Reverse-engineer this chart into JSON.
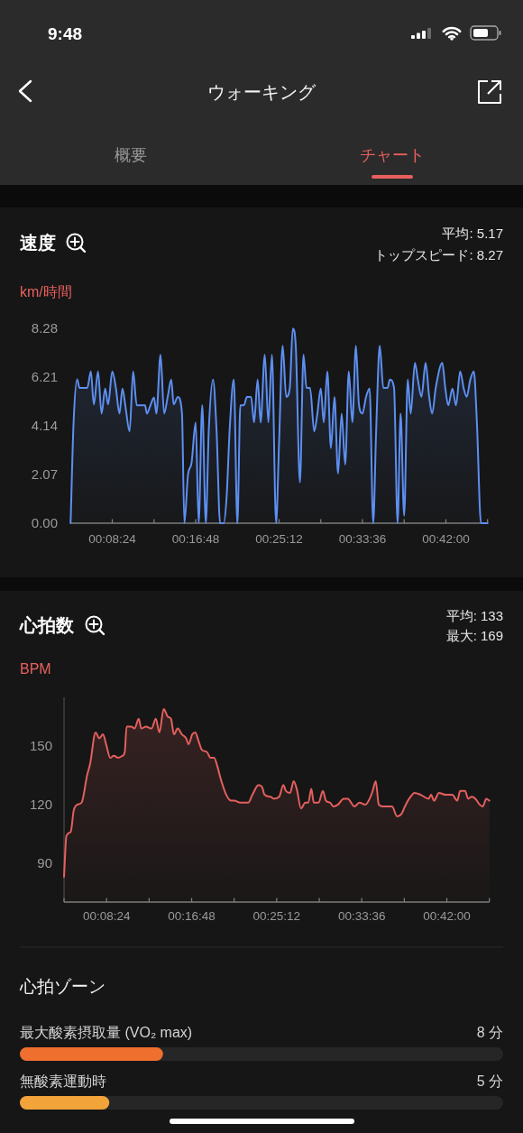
{
  "chart_data": [
    {
      "type": "other",
      "title": "ウォーキング",
      "annotations": [
        "9:48",
        "概要",
        "チャート"
      ]
    },
    {
      "type": "area",
      "title": "速度",
      "ylabel": "km/時間",
      "annotations": [
        "平均: 5.17",
        "トップスピード: 8.27"
      ],
      "color": "#5d8ff0",
      "x": [
        0.07,
        0.075,
        0.081,
        0.085,
        0.098,
        0.104,
        0.109,
        0.116,
        0.122,
        0.128,
        0.133,
        0.14,
        0.146,
        0.152,
        0.157,
        0.162,
        0.169,
        0.175,
        0.181,
        0.195,
        0.198,
        0.204,
        0.21,
        0.214,
        0.221,
        0.227,
        0.233,
        0.239,
        0.243,
        0.25,
        0.257,
        0.261,
        0.267,
        0.273,
        0.28,
        0.285,
        0.291,
        0.297,
        0.302,
        0.309,
        0.315,
        0.321,
        0.327,
        0.332,
        0.337,
        0.344,
        0.35,
        0.355,
        0.361,
        0.366,
        0.373,
        0.378,
        0.384,
        0.389,
        0.396,
        0.402,
        0.408,
        0.415,
        0.42,
        0.426,
        0.432,
        0.438,
        0.443,
        0.448,
        0.455,
        0.461,
        0.466,
        0.472,
        0.479,
        0.484,
        0.49,
        0.495,
        0.501,
        0.507,
        0.513,
        0.519,
        0.525,
        0.531,
        0.537,
        0.543,
        0.549,
        0.554,
        0.56,
        0.566,
        0.572,
        0.578,
        0.583,
        0.589,
        0.595,
        0.602,
        0.606,
        0.613,
        0.619,
        0.624,
        0.63,
        0.636,
        0.641,
        0.648,
        0.653,
        0.659,
        0.666,
        0.672,
        0.677,
        0.683,
        0.694,
        0.699,
        0.704,
        0.711,
        0.717,
        0.724,
        0.73,
        0.735,
        0.741,
        0.747,
        0.752,
        0.759,
        0.77
      ],
      "values": [
        0,
        4.28,
        6.11,
        5.75,
        5.75,
        6.45,
        5.05,
        6.45,
        4.66,
        5.72,
        5.05,
        6.45,
        5.75,
        4.66,
        5.72,
        4.98,
        3.9,
        6.45,
        5.01,
        5.01,
        4.66,
        5.01,
        5.34,
        4.66,
        7.16,
        4.66,
        5.37,
        6.1,
        5.05,
        5.37,
        4.66,
        0,
        2.04,
        2.56,
        4.28,
        0,
        5.01,
        0,
        3.96,
        6.1,
        3.96,
        0,
        0,
        1.15,
        3.96,
        6.1,
        0,
        5.01,
        5.01,
        5.37,
        5.37,
        4.28,
        6.1,
        4.28,
        7.16,
        4.28,
        7.16,
        0,
        3.45,
        7.54,
        5.37,
        5.75,
        8.27,
        7.54,
        1.73,
        7.16,
        5.75,
        5.75,
        3.9,
        4.6,
        5.72,
        4.28,
        6.45,
        3.19,
        5.37,
        2.11,
        4.66,
        2.49,
        6.45,
        4.28,
        7.54,
        5.05,
        4.66,
        5.37,
        5.72,
        0,
        3.96,
        7.54,
        5.75,
        5.75,
        6.1,
        5.75,
        0,
        4.66,
        0.32,
        6.1,
        4.66,
        6.81,
        6.1,
        5.37,
        6.81,
        5.37,
        4.66,
        5.75,
        6.81,
        5.75,
        5.01,
        5.72,
        5.01,
        6.45,
        5.72,
        5.37,
        6.1,
        6.45,
        4.34,
        0,
        0
      ],
      "xlim": [
        0.07,
        0.77
      ],
      "xticks": [
        {
          "value": 0.07,
          "label": null
        },
        {
          "value": 0.14,
          "label": "00:08:24"
        },
        {
          "value": 0.21,
          "label": null
        },
        {
          "value": 0.28,
          "label": "00:16:48"
        },
        {
          "value": 0.35,
          "label": null
        },
        {
          "value": 0.42,
          "label": "00:25:12"
        },
        {
          "value": 0.49,
          "label": null
        },
        {
          "value": 0.56,
          "label": "00:33:36"
        },
        {
          "value": 0.63,
          "label": null
        },
        {
          "value": 0.7,
          "label": "00:42:00"
        },
        {
          "value": 0.77,
          "label": null
        }
      ],
      "ylim": [
        0,
        8.28
      ],
      "yticks": [
        {
          "value": 0,
          "label": "0.00"
        },
        2.07,
        4.14,
        6.21,
        8.28
      ]
    },
    {
      "type": "area",
      "title": "心拍数",
      "ylabel": "BPM",
      "annotations": [
        "平均: 133",
        "最大: 169"
      ],
      "color": "#e4605e",
      "x": [
        0.07,
        0.074,
        0.081,
        0.086,
        0.092,
        0.099,
        0.108,
        0.113,
        0.122,
        0.128,
        0.134,
        0.14,
        0.146,
        0.152,
        0.159,
        0.166,
        0.17,
        0.173,
        0.181,
        0.186,
        0.193,
        0.197,
        0.205,
        0.214,
        0.221,
        0.227,
        0.234,
        0.241,
        0.246,
        0.251,
        0.257,
        0.264,
        0.271,
        0.275,
        0.281,
        0.286,
        0.291,
        0.297,
        0.305,
        0.311,
        0.317,
        0.322,
        0.328,
        0.337,
        0.345,
        0.35,
        0.36,
        0.373,
        0.38,
        0.39,
        0.396,
        0.4,
        0.41,
        0.415,
        0.424,
        0.431,
        0.435,
        0.442,
        0.448,
        0.453,
        0.46,
        0.467,
        0.472,
        0.477,
        0.481,
        0.489,
        0.496,
        0.501,
        0.508,
        0.513,
        0.521,
        0.53,
        0.537,
        0.548,
        0.556,
        0.566,
        0.573,
        0.578,
        0.583,
        0.588,
        0.595,
        0.603,
        0.61,
        0.618,
        0.625,
        0.631,
        0.638,
        0.647,
        0.657,
        0.67,
        0.674,
        0.679,
        0.687,
        0.698,
        0.709,
        0.717,
        0.722,
        0.73,
        0.735,
        0.741,
        0.747,
        0.754,
        0.759,
        0.765,
        0.77
      ],
      "values": [
        83,
        104,
        106,
        117,
        120,
        121,
        135,
        141,
        157,
        154,
        156,
        150,
        144,
        145,
        144,
        145,
        147,
        160,
        160,
        159,
        164,
        159,
        160,
        159,
        164,
        157,
        169,
        165,
        164,
        156,
        159,
        156,
        154,
        151,
        156,
        157,
        153,
        148,
        147,
        144,
        144,
        140,
        133,
        125,
        122,
        122,
        121,
        121,
        125,
        130,
        129,
        125,
        124,
        123,
        124,
        130,
        127,
        126,
        132,
        128,
        118,
        121,
        121,
        128,
        121,
        121,
        127,
        122,
        121,
        119,
        120,
        123,
        123,
        119,
        121,
        120,
        123,
        127,
        132,
        120,
        119,
        119,
        119,
        114,
        115,
        119,
        123,
        126,
        125,
        123,
        125,
        122,
        126,
        125,
        125,
        122,
        127,
        127,
        123,
        124,
        123,
        120,
        119,
        123,
        122
      ],
      "xlim": [
        0.07,
        0.77
      ],
      "xticks": [
        {
          "value": 0.07,
          "label": null
        },
        {
          "value": 0.14,
          "label": "00:08:24"
        },
        {
          "value": 0.21,
          "label": null
        },
        {
          "value": 0.28,
          "label": "00:16:48"
        },
        {
          "value": 0.35,
          "label": null
        },
        {
          "value": 0.42,
          "label": "00:25:12"
        },
        {
          "value": 0.49,
          "label": null
        },
        {
          "value": 0.56,
          "label": "00:33:36"
        },
        {
          "value": 0.63,
          "label": null
        },
        {
          "value": 0.7,
          "label": "00:42:00"
        },
        {
          "value": 0.77,
          "label": null
        }
      ],
      "ylim": [
        70,
        175
      ],
      "yticks": [
        90,
        120,
        150
      ]
    },
    {
      "type": "bar",
      "orientation": "horizontal",
      "title": "心拍ゾーン",
      "categories": [
        "最大酸素摂取量 (VO₂ max)",
        "無酸素運動時"
      ],
      "values": [
        8,
        5
      ],
      "value_labels": [
        "8 分",
        "5 分"
      ],
      "colors": [
        "#ee6f2e",
        "#f2a33a"
      ],
      "xlim": [
        0,
        27
      ]
    }
  ]
}
